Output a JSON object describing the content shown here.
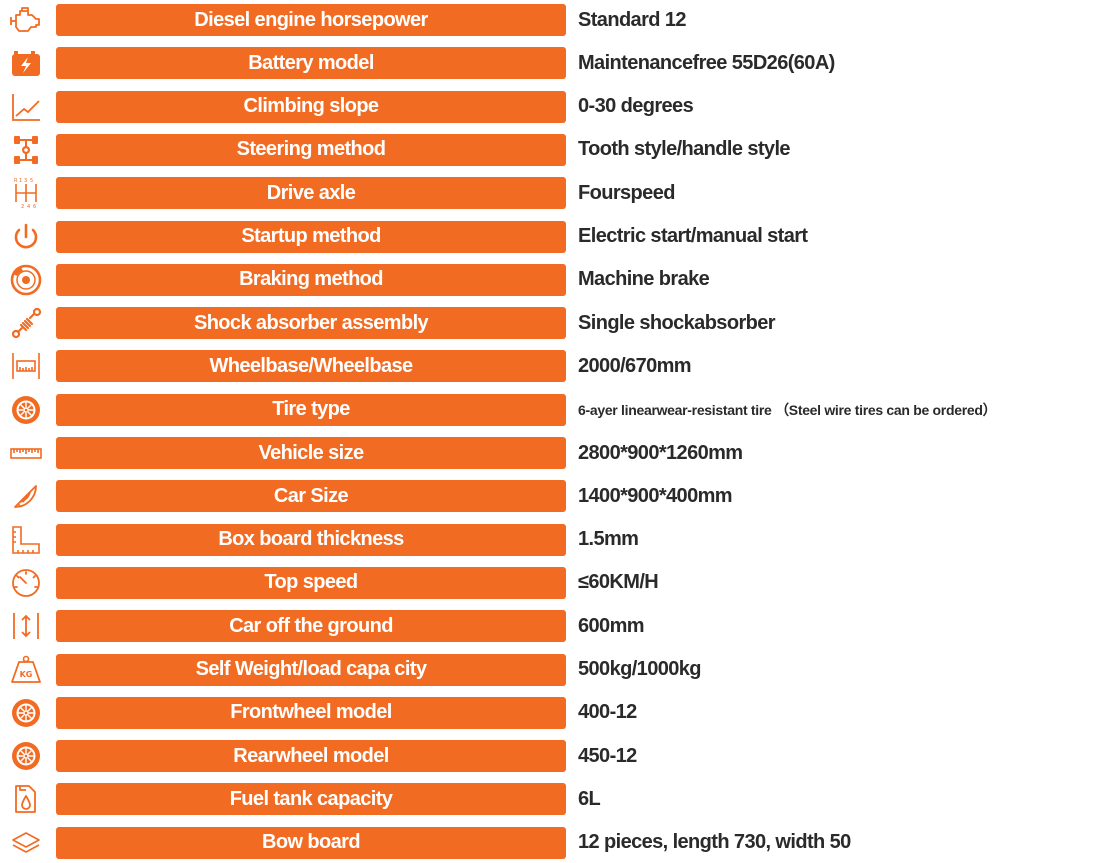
{
  "accent_color": "#f26b22",
  "text_color": "#2a2a2a",
  "rows": [
    {
      "icon": "engine-icon",
      "label": "Diesel engine horsepower",
      "value": "Standard 12"
    },
    {
      "icon": "battery-icon",
      "label": "Battery model",
      "value": "Maintenancefree 55D26(60A)"
    },
    {
      "icon": "slope-chart-icon",
      "label": "Climbing slope",
      "value": "0-30 degrees"
    },
    {
      "icon": "steering-axle-icon",
      "label": "Steering method",
      "value": "Tooth style/handle style"
    },
    {
      "icon": "gear-shift-icon",
      "label": "Drive axle",
      "value": "Fourspeed"
    },
    {
      "icon": "power-icon",
      "label": "Startup method",
      "value": "Electric start/manual start"
    },
    {
      "icon": "brake-disc-icon",
      "label": "Braking method",
      "value": "Machine brake"
    },
    {
      "icon": "shock-absorber-icon",
      "label": "Shock absorber assembly",
      "value": "Single shockabsorber"
    },
    {
      "icon": "wheelbase-icon",
      "label": "Wheelbase/Wheelbase",
      "value": "2000/670mm"
    },
    {
      "icon": "tire-icon",
      "label": "Tire type",
      "value": "6-ayer linearwear-resistant tire （Steel wire tires can be ordered）"
    },
    {
      "icon": "ruler-icon",
      "label": "Vehicle size",
      "value": "2800*900*1260mm"
    },
    {
      "icon": "protractor-icon",
      "label": "Car Size",
      "value": "1400*900*400mm"
    },
    {
      "icon": "thickness-icon",
      "label": "Box board thickness",
      "value": "1.5mm"
    },
    {
      "icon": "speedometer-icon",
      "label": "Top speed",
      "value": "≤60KM/H"
    },
    {
      "icon": "height-icon",
      "label": "Car off the ground",
      "value": "600mm"
    },
    {
      "icon": "weight-icon",
      "label": "Self  Weight/load capa city",
      "value": "500kg/1000kg"
    },
    {
      "icon": "tire-icon",
      "label": "Frontwheel model",
      "value": "400-12"
    },
    {
      "icon": "tire-icon",
      "label": "Rearwheel model",
      "value": "450-12"
    },
    {
      "icon": "fuel-tank-icon",
      "label": "Fuel tank capacity",
      "value": "6L"
    },
    {
      "icon": "layers-icon",
      "label": "Bow board",
      "value": "12 pieces, length 730, width 50"
    }
  ]
}
